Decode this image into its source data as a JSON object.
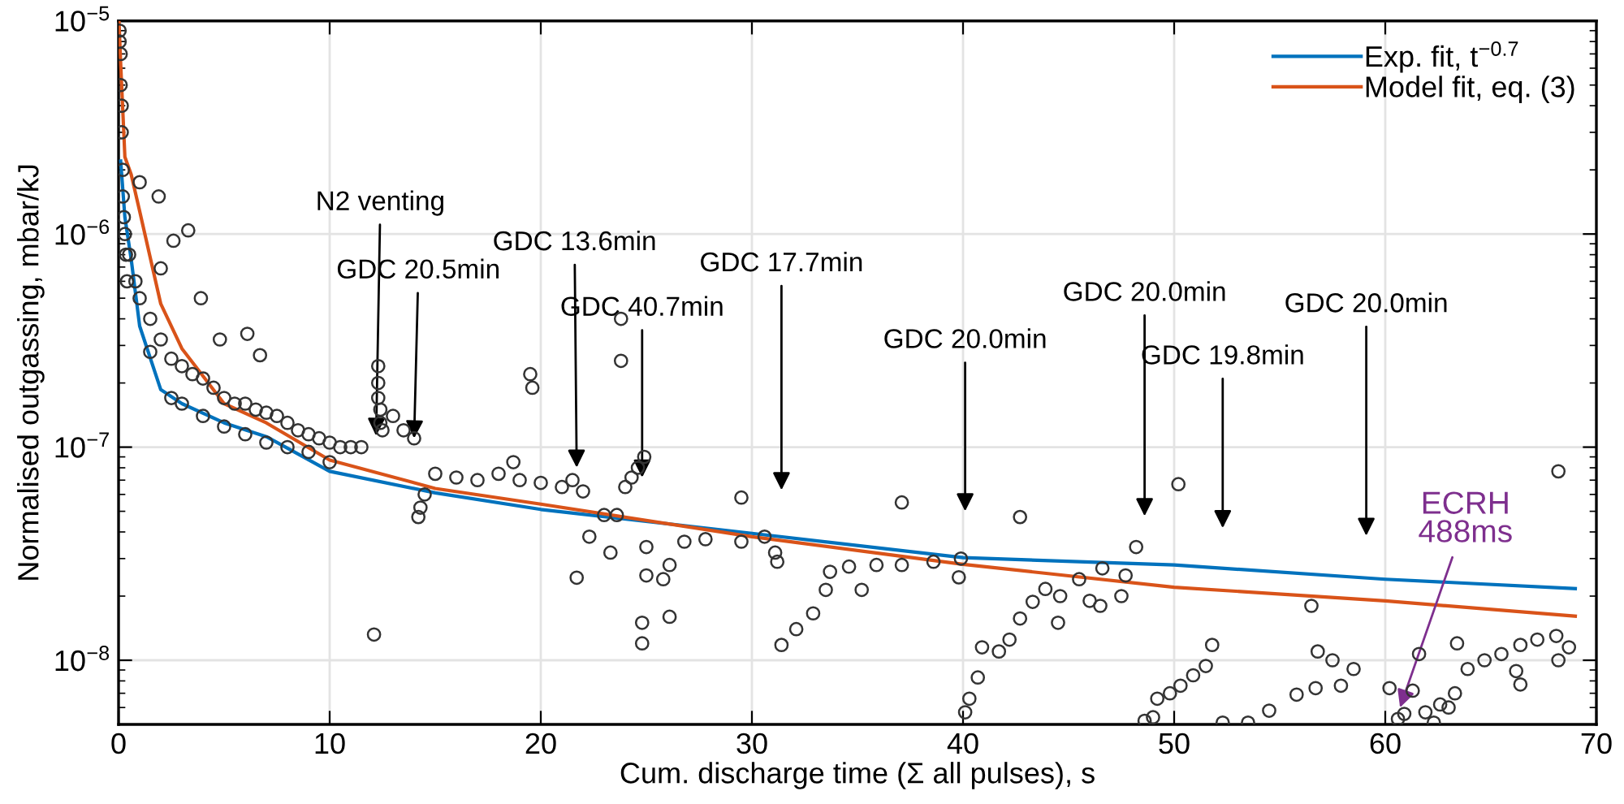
{
  "chart_data": {
    "type": "scatter",
    "xlabel": "Cum. discharge time (Σ all pulses), s",
    "ylabel": "Normalised outgassing, mbar/kJ",
    "log": "y",
    "grid": true,
    "legend": "top right",
    "xlim": [
      0,
      70
    ],
    "xticks": [
      0,
      10,
      20,
      30,
      40,
      50,
      60,
      70
    ],
    "ylim": [
      5e-09,
      1e-05
    ],
    "yticks": [
      {
        "value": 1e-08,
        "label": "10$^{−8}$"
      },
      {
        "value": 1e-07,
        "label": "10$^{−7}$"
      },
      {
        "value": 1e-06,
        "label": "10$^{−6}$"
      },
      {
        "value": 1e-05,
        "label": "10$^{−5}$"
      }
    ],
    "series": [
      {
        "color": "#333333",
        "marker": "circle",
        "x": [
          0.05,
          0.05,
          0.1,
          0.1,
          0.15,
          0.15,
          0.2,
          0.2,
          0.25,
          0.3,
          0.35,
          0.4,
          1.0,
          1.9,
          2.6,
          3.3,
          2.0,
          3.9,
          4.8,
          6.1,
          6.7,
          0.5,
          0.8,
          1.0,
          1.5,
          2.0,
          2.5,
          3.0,
          3.5,
          4.0,
          4.5,
          5.0,
          5.5,
          6.0,
          6.5,
          7.0,
          7.5,
          8.0,
          8.5,
          9.0,
          9.5,
          10.0,
          10.5,
          11.0,
          11.5,
          1.5,
          2.5,
          3.0,
          4.0,
          5.0,
          6.0,
          7.0,
          8.0,
          9.0,
          10.0,
          12.3,
          12.3,
          12.3,
          12.4,
          12.4,
          12.5,
          12.1,
          13.0,
          13.5,
          14.0,
          14.2,
          14.3,
          14.5,
          15.0,
          16.0,
          17.0,
          18.0,
          18.7,
          19.0,
          19.5,
          19.6,
          20.0,
          21.0,
          21.5,
          22.0,
          23.8,
          23.8,
          24.0,
          24.3,
          24.6,
          24.9,
          21.7,
          22.3,
          23.0,
          23.6,
          23.3,
          24.8,
          24.8,
          26.1,
          25.0,
          25.0,
          25.8,
          26.1,
          26.8,
          27.8,
          29.5,
          30.6,
          31.1,
          31.2,
          29.5,
          31.4,
          32.1,
          32.9,
          33.5,
          33.7,
          34.6,
          35.9,
          37.1,
          38.6,
          39.9,
          35.2,
          37.1,
          39.8,
          40.1,
          40.3,
          40.7,
          40.9,
          41.7,
          42.2,
          42.7,
          43.3,
          43.9,
          42.7,
          44.5,
          44.6,
          45.5,
          46.0,
          46.5,
          47.5,
          47.7,
          46.6,
          48.2,
          50.2,
          48.6,
          49.0,
          49.2,
          49.8,
          50.3,
          50.9,
          51.5,
          51.8,
          52.3,
          53.5,
          54.5,
          55.8,
          56.7,
          56.8,
          57.5,
          57.9,
          58.5,
          56.5,
          60.2,
          60.6,
          60.9,
          61.3,
          61.6,
          61.9,
          62.3,
          62.6,
          63.0,
          63.3,
          63.4,
          63.9,
          64.7,
          65.5,
          66.4,
          67.2,
          68.1,
          68.7,
          68.2,
          66.2,
          66.4,
          68.2
        ],
        "values": [
          9e-06,
          8e-06,
          7e-06,
          5e-06,
          4e-06,
          3e-06,
          2e-06,
          1.5e-06,
          1.2e-06,
          1e-06,
          8e-07,
          6e-07,
          1.75e-06,
          1.5e-06,
          9.3e-07,
          1.04e-06,
          6.9e-07,
          5e-07,
          3.2e-07,
          3.4e-07,
          2.7e-07,
          8e-07,
          6e-07,
          5e-07,
          4e-07,
          3.2e-07,
          2.6e-07,
          2.4e-07,
          2.2e-07,
          2.1e-07,
          1.9e-07,
          1.7e-07,
          1.6e-07,
          1.6e-07,
          1.5e-07,
          1.45e-07,
          1.4e-07,
          1.3e-07,
          1.2e-07,
          1.15e-07,
          1.1e-07,
          1.05e-07,
          1e-07,
          1e-07,
          1e-07,
          2.8e-07,
          1.7e-07,
          1.6e-07,
          1.4e-07,
          1.25e-07,
          1.15e-07,
          1.05e-07,
          1e-07,
          9.5e-08,
          8.5e-08,
          2.4e-07,
          2e-07,
          1.7e-07,
          1.5e-07,
          1.3e-07,
          1.2e-07,
          1.32e-08,
          1.4e-07,
          1.2e-07,
          1.1e-07,
          4.7e-08,
          5.2e-08,
          6e-08,
          7.5e-08,
          7.2e-08,
          7e-08,
          7.5e-08,
          8.5e-08,
          7e-08,
          2.2e-07,
          1.9e-07,
          6.8e-08,
          6.5e-08,
          7e-08,
          6.2e-08,
          4e-07,
          2.54e-07,
          6.5e-08,
          7.2e-08,
          8e-08,
          9e-08,
          2.44e-08,
          3.8e-08,
          4.8e-08,
          4.8e-08,
          3.2e-08,
          1.5e-08,
          1.2e-08,
          1.6e-08,
          2.5e-08,
          3.4e-08,
          2.4e-08,
          2.8e-08,
          3.6e-08,
          3.7e-08,
          3.6e-08,
          3.8e-08,
          3.2e-08,
          2.9e-08,
          5.8e-08,
          1.18e-08,
          1.4e-08,
          1.66e-08,
          2.14e-08,
          2.6e-08,
          2.75e-08,
          2.8e-08,
          2.8e-08,
          2.9e-08,
          3e-08,
          2.14e-08,
          5.5e-08,
          2.45e-08,
          5.7e-09,
          6.6e-09,
          8.3e-09,
          1.15e-08,
          1.1e-08,
          1.25e-08,
          1.57e-08,
          1.88e-08,
          2.16e-08,
          4.7e-08,
          1.5e-08,
          2e-08,
          2.4e-08,
          1.9e-08,
          1.8e-08,
          2e-08,
          2.5e-08,
          2.7e-08,
          3.4e-08,
          6.7e-08,
          5.2e-09,
          5.4e-09,
          6.6e-09,
          7e-09,
          7.6e-09,
          8.5e-09,
          9.4e-09,
          1.18e-08,
          5.1e-09,
          5.1e-09,
          5.8e-09,
          6.9e-09,
          7.4e-09,
          1.1e-08,
          1e-08,
          7.6e-09,
          9.1e-09,
          1.8e-08,
          7.4e-09,
          5.3e-09,
          5.6e-09,
          7.2e-09,
          1.07e-08,
          5.7e-09,
          5.1e-09,
          6.2e-09,
          6e-09,
          7e-09,
          1.2e-08,
          9.1e-09,
          1e-08,
          1.07e-08,
          1.18e-08,
          1.25e-08,
          1.3e-08,
          1.15e-08,
          1e-08,
          8.9e-09,
          7.7e-09,
          7.7e-08
        ]
      },
      {
        "type": "line",
        "name": "Exp. fit, t$^{−0.7}$",
        "color": "#0072bd",
        "x": [
          0.1,
          0.3,
          0.6,
          1,
          2,
          3,
          5,
          7,
          10,
          15,
          20,
          30,
          40,
          50,
          60,
          69
        ],
        "values": [
          2.2e-06,
          1.2e-06,
          7.6e-07,
          3.7e-07,
          1.86e-07,
          1.6e-07,
          1.3e-07,
          1.12e-07,
          7.7e-08,
          6.1e-08,
          5.1e-08,
          3.94e-08,
          3.03e-08,
          2.8e-08,
          2.4e-08,
          2.17e-08
        ]
      },
      {
        "type": "line",
        "name": "Model fit, eq. (3)",
        "color": "#d95319",
        "x": [
          0.02,
          0.1,
          0.3,
          0.6,
          1,
          2,
          3,
          5,
          7,
          10,
          15,
          20,
          30,
          40,
          50,
          60,
          69
        ],
        "values": [
          1e-05,
          6.3e-06,
          2.3e-06,
          1.9e-06,
          1.28e-06,
          4.7e-07,
          2.9e-07,
          1.6e-07,
          1.3e-07,
          8.7e-08,
          6.4e-08,
          5.4e-08,
          3.8e-08,
          2.82e-08,
          2.2e-08,
          1.9e-08,
          1.61e-08
        ]
      }
    ],
    "annotations": [
      {
        "text": "N2 venting",
        "x": 12.2,
        "y": 1.13e-07
      },
      {
        "text": "GDC 20.5min",
        "x": 14.0,
        "y": 1.1e-07
      },
      "GDC 13.6min",
      {
        "text": "GDC 40.7min",
        "x": 24.8,
        "y": 7.2e-08
      },
      "GDC 17.7min",
      "GDC 20.0min",
      "GDC 20.0min",
      "GDC 19.8min",
      "GDC 20.0min",
      {
        "text": "ECRH\n488ms",
        "x": 60.7,
        "y": 6e-09
      }
    ]
  }
}
